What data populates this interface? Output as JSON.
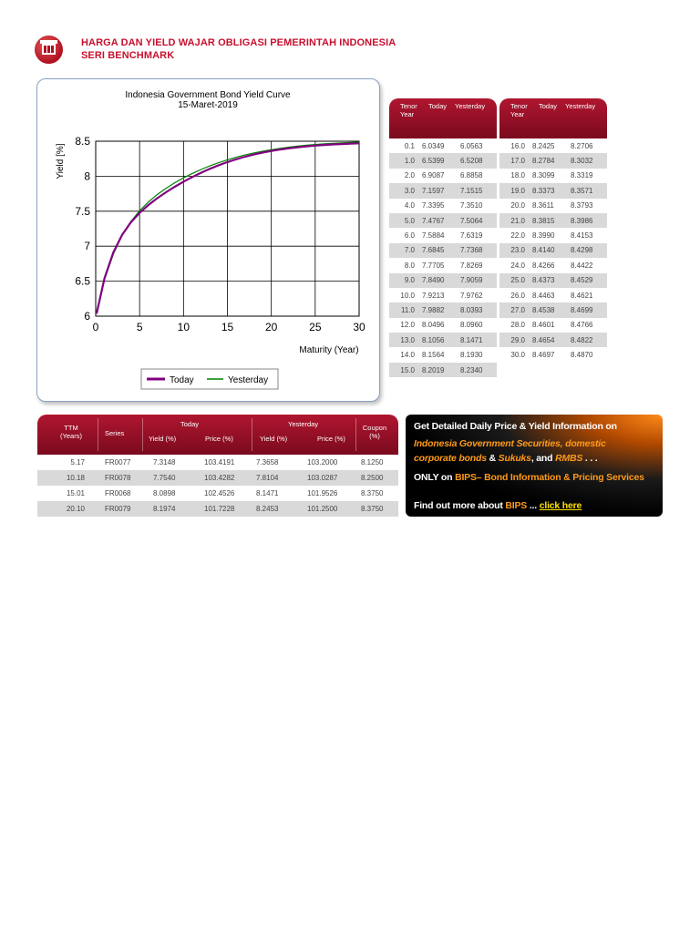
{
  "header": {
    "title_line1": "HARGA DAN YIELD WAJAR OBLIGASI PEMERINTAH INDONESIA",
    "title_line2": "SERI BENCHMARK"
  },
  "chart_data": {
    "type": "line",
    "title": "Indonesia Government Bond Yield Curve",
    "subtitle": "15-Maret-2019",
    "xlabel": "Maturity (Year)",
    "ylabel": "Yield [%]",
    "xlim": [
      0,
      30
    ],
    "ylim": [
      6,
      8.5
    ],
    "x_ticks": [
      "0",
      "5",
      "10",
      "15",
      "20",
      "25",
      "30"
    ],
    "y_ticks": [
      "6",
      "6.5",
      "7",
      "7.5",
      "8",
      "8.5"
    ],
    "grid": true,
    "legend_position": "bottom",
    "series": [
      {
        "name": "Today",
        "color": "#800080",
        "x": [
          0.1,
          1,
          2,
          3,
          4,
          5,
          6,
          7,
          8,
          9,
          10,
          11,
          12,
          13,
          14,
          15,
          16,
          17,
          18,
          19,
          20,
          21,
          22,
          23,
          24,
          25,
          26,
          27,
          28,
          29,
          30
        ],
        "y": [
          6.0349,
          6.5399,
          6.9087,
          7.1597,
          7.3395,
          7.4767,
          7.5884,
          7.6845,
          7.7705,
          7.849,
          7.9213,
          7.9882,
          8.0496,
          8.1056,
          8.1564,
          8.2019,
          8.2425,
          8.2784,
          8.3099,
          8.3373,
          8.3611,
          8.3815,
          8.399,
          8.414,
          8.4266,
          8.4373,
          8.4463,
          8.4538,
          8.4601,
          8.4654,
          8.4697
        ]
      },
      {
        "name": "Yesterday",
        "color": "#008000",
        "x": [
          0.1,
          1,
          2,
          3,
          4,
          5,
          6,
          7,
          8,
          9,
          10,
          11,
          12,
          13,
          14,
          15,
          16,
          17,
          18,
          19,
          20,
          21,
          22,
          23,
          24,
          25,
          26,
          27,
          28,
          29,
          30
        ],
        "y": [
          6.0563,
          6.5208,
          6.8858,
          7.1515,
          7.351,
          7.5064,
          7.6319,
          7.7368,
          7.8269,
          7.9059,
          7.9762,
          8.0393,
          8.096,
          8.1471,
          8.193,
          8.234,
          8.2706,
          8.3032,
          8.3319,
          8.3571,
          8.3793,
          8.3986,
          8.4153,
          8.4298,
          8.4422,
          8.4529,
          8.4621,
          8.4699,
          8.4766,
          8.4822,
          8.487
        ]
      }
    ]
  },
  "tenor_table": {
    "headers": [
      "Tenor Year",
      "Today",
      "Yesterday"
    ],
    "left_rows": [
      [
        "0.1",
        "6.0349",
        "6.0563"
      ],
      [
        "1.0",
        "6.5399",
        "6.5208"
      ],
      [
        "2.0",
        "6.9087",
        "6.8858"
      ],
      [
        "3.0",
        "7.1597",
        "7.1515"
      ],
      [
        "4.0",
        "7.3395",
        "7.3510"
      ],
      [
        "5.0",
        "7.4767",
        "7.5064"
      ],
      [
        "6.0",
        "7.5884",
        "7.6319"
      ],
      [
        "7.0",
        "7.6845",
        "7.7368"
      ],
      [
        "8.0",
        "7.7705",
        "7.8269"
      ],
      [
        "9.0",
        "7.8490",
        "7.9059"
      ],
      [
        "10.0",
        "7.9213",
        "7.9762"
      ],
      [
        "11.0",
        "7.9882",
        "8.0393"
      ],
      [
        "12.0",
        "8.0496",
        "8.0960"
      ],
      [
        "13.0",
        "8.1056",
        "8.1471"
      ],
      [
        "14.0",
        "8.1564",
        "8.1930"
      ],
      [
        "15.0",
        "8.2019",
        "8.2340"
      ]
    ],
    "right_rows": [
      [
        "16.0",
        "8.2425",
        "8.2706"
      ],
      [
        "17.0",
        "8.2784",
        "8.3032"
      ],
      [
        "18.0",
        "8.3099",
        "8.3319"
      ],
      [
        "19.0",
        "8.3373",
        "8.3571"
      ],
      [
        "20.0",
        "8.3611",
        "8.3793"
      ],
      [
        "21.0",
        "8.3815",
        "8.3986"
      ],
      [
        "22.0",
        "8.3990",
        "8.4153"
      ],
      [
        "23.0",
        "8.4140",
        "8.4298"
      ],
      [
        "24.0",
        "8.4266",
        "8.4422"
      ],
      [
        "25.0",
        "8.4373",
        "8.4529"
      ],
      [
        "26.0",
        "8.4463",
        "8.4621"
      ],
      [
        "27.0",
        "8.4538",
        "8.4699"
      ],
      [
        "28.0",
        "8.4601",
        "8.4766"
      ],
      [
        "29.0",
        "8.4654",
        "8.4822"
      ],
      [
        "30.0",
        "8.4697",
        "8.4870"
      ]
    ]
  },
  "benchmark_table": {
    "headers": {
      "ttm": "TTM (Years)",
      "series": "Series",
      "today": "Today",
      "yesterday": "Yesterday",
      "yield": "Yield (%)",
      "price": "Price (%)",
      "coupon": "Coupon (%)"
    },
    "rows": [
      [
        "5.17",
        "FR0077",
        "7.3148",
        "103.4191",
        "7.3658",
        "103.2000",
        "8.1250"
      ],
      [
        "10.18",
        "FR0078",
        "7.7540",
        "103.4282",
        "7.8104",
        "103.0287",
        "8.2500"
      ],
      [
        "15.01",
        "FR0068",
        "8.0898",
        "102.4526",
        "8.1471",
        "101.9526",
        "8.3750"
      ],
      [
        "20.10",
        "FR0079",
        "8.1974",
        "101.7228",
        "8.2453",
        "101.2500",
        "8.3750"
      ]
    ]
  },
  "banner": {
    "line1": "Get Detailed Daily Price & Yield Information on",
    "line2": "Indonesia Government Securities, domestic",
    "line3a": "corporate bonds",
    "line3b": " & ",
    "line3c": "Sukuks",
    "line3d": ", and ",
    "line3e": "RMBS",
    "line3f": " . . .",
    "line4a": "ONLY on ",
    "line4b": "BIPS",
    "line4c": "– Bond Information & Pricing Services",
    "line5a": "Find out more about ",
    "line5b": "BIPS",
    "line5c": " ... ",
    "line5d": "click here"
  }
}
